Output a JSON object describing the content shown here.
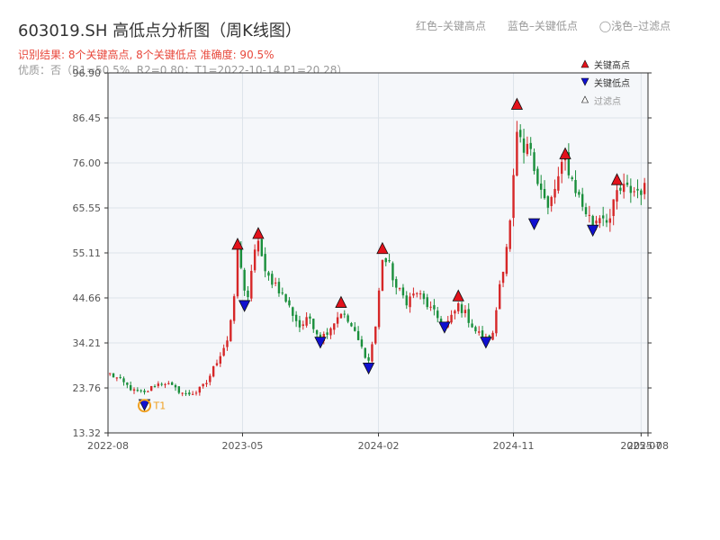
{
  "title": "603019.SH 高低点分析图（周K线图）",
  "legend_top": {
    "red": "红色–关键高点",
    "blue": "蓝色–关键低点",
    "light": "◯浅色–过滤点"
  },
  "subtitle": {
    "result": "识别结果: 8个关键高点, 8个关键低点  准确度: 90.5%",
    "params": "优质：否（R1=50.5%, R2=0.80；T1=2022-10-14 P1=20.28）"
  },
  "colors": {
    "up": "#d62728",
    "down": "#1a8f3c",
    "high_marker": "#e3121b",
    "low_marker": "#1010d0",
    "t1_marker": "#f0a020",
    "plot_bg": "#f5f7fa",
    "grid": "#dde3ea"
  },
  "chart_data": {
    "type": "candlestick",
    "x_axis_type": "date",
    "xlim": [
      "2022-08-01",
      "2025-08-01"
    ],
    "ylim": [
      13.32,
      96.9
    ],
    "y_ticks": [
      "13.32",
      "23.76",
      "34.21",
      "44.66",
      "55.11",
      "65.55",
      "76.00",
      "86.45",
      "96.90"
    ],
    "x_ticks": [
      {
        "date": "2022-08-01",
        "label": "2022-08"
      },
      {
        "date": "2023-05-01",
        "label": "2023-05"
      },
      {
        "date": "2024-02-01",
        "label": "2024-02"
      },
      {
        "date": "2024-11-01",
        "label": "2024-11"
      },
      {
        "date": "2025-07-18",
        "label": "2025-07"
      },
      {
        "date": "2025-08-01",
        "label": "2025-08"
      }
    ],
    "close_anchors": [
      [
        "2022-08-05",
        27.0
      ],
      [
        "2022-08-26",
        25.5
      ],
      [
        "2022-09-23",
        23.0
      ],
      [
        "2022-10-14",
        22.5
      ],
      [
        "2022-11-04",
        24.5
      ],
      [
        "2022-11-25",
        25.0
      ],
      [
        "2022-12-16",
        23.5
      ],
      [
        "2023-01-06",
        22.2
      ],
      [
        "2023-01-27",
        22.8
      ],
      [
        "2023-02-17",
        25.0
      ],
      [
        "2023-03-10",
        30.0
      ],
      [
        "2023-03-31",
        35.0
      ],
      [
        "2023-04-14",
        44.0
      ],
      [
        "2023-04-21",
        56.0
      ],
      [
        "2023-04-28",
        51.0
      ],
      [
        "2023-05-05",
        47.0
      ],
      [
        "2023-05-12",
        45.0
      ],
      [
        "2023-05-26",
        55.0
      ],
      [
        "2023-06-02",
        58.5
      ],
      [
        "2023-06-16",
        50.0
      ],
      [
        "2023-07-07",
        48.0
      ],
      [
        "2023-07-28",
        44.0
      ],
      [
        "2023-08-25",
        38.0
      ],
      [
        "2023-09-15",
        40.0
      ],
      [
        "2023-10-06",
        35.0
      ],
      [
        "2023-10-27",
        38.0
      ],
      [
        "2023-11-17",
        41.5
      ],
      [
        "2023-12-08",
        38.0
      ],
      [
        "2023-12-29",
        33.0
      ],
      [
        "2024-01-12",
        30.0
      ],
      [
        "2024-01-26",
        38.0
      ],
      [
        "2024-02-09",
        54.0
      ],
      [
        "2024-02-23",
        52.0
      ],
      [
        "2024-03-08",
        47.0
      ],
      [
        "2024-03-29",
        44.0
      ],
      [
        "2024-04-19",
        46.0
      ],
      [
        "2024-05-10",
        43.0
      ],
      [
        "2024-05-31",
        40.0
      ],
      [
        "2024-06-14",
        38.0
      ],
      [
        "2024-06-28",
        40.0
      ],
      [
        "2024-07-12",
        43.0
      ],
      [
        "2024-07-26",
        41.0
      ],
      [
        "2024-08-16",
        37.0
      ],
      [
        "2024-09-06",
        35.0
      ],
      [
        "2024-09-20",
        36.0
      ],
      [
        "2024-10-04",
        48.0
      ],
      [
        "2024-10-11",
        52.0
      ],
      [
        "2024-10-25",
        62.0
      ],
      [
        "2024-11-08",
        82.0
      ],
      [
        "2024-11-22",
        78.0
      ],
      [
        "2024-12-06",
        80.0
      ],
      [
        "2024-12-20",
        72.0
      ],
      [
        "2025-01-10",
        65.0
      ],
      [
        "2025-01-24",
        70.0
      ],
      [
        "2025-02-14",
        77.0
      ],
      [
        "2025-02-28",
        72.0
      ],
      [
        "2025-03-21",
        66.0
      ],
      [
        "2025-04-11",
        62.0
      ],
      [
        "2025-04-25",
        64.0
      ],
      [
        "2025-05-16",
        63.0
      ],
      [
        "2025-05-30",
        69.0
      ],
      [
        "2025-06-13",
        70.0
      ],
      [
        "2025-07-04",
        69.5
      ],
      [
        "2025-07-25",
        70.0
      ]
    ],
    "key_highs": [
      {
        "date": "2023-04-21",
        "value": 57.0
      },
      {
        "date": "2023-06-02",
        "value": 59.5
      },
      {
        "date": "2023-11-17",
        "value": 43.5
      },
      {
        "date": "2024-02-09",
        "value": 56.0
      },
      {
        "date": "2024-07-12",
        "value": 45.0
      },
      {
        "date": "2024-11-08",
        "value": 89.5
      },
      {
        "date": "2025-02-14",
        "value": 78.0
      },
      {
        "date": "2025-05-30",
        "value": 72.0
      }
    ],
    "key_lows": [
      {
        "date": "2023-05-05",
        "value": 43.0
      },
      {
        "date": "2023-10-06",
        "value": 34.5
      },
      {
        "date": "2024-01-12",
        "value": 28.5
      },
      {
        "date": "2024-06-14",
        "value": 38.0
      },
      {
        "date": "2024-09-06",
        "value": 34.5
      },
      {
        "date": "2024-12-13",
        "value": 62.0
      },
      {
        "date": "2025-04-11",
        "value": 60.5
      },
      {
        "date": "2022-10-14",
        "value": 20.0
      }
    ],
    "t1": {
      "date": "2022-10-14",
      "value": 20.28,
      "label": "T1"
    },
    "legend_inner": [
      "关键高点",
      "关键低点",
      "过滤点"
    ],
    "legend_inner_position": "top-right",
    "grid": true
  }
}
